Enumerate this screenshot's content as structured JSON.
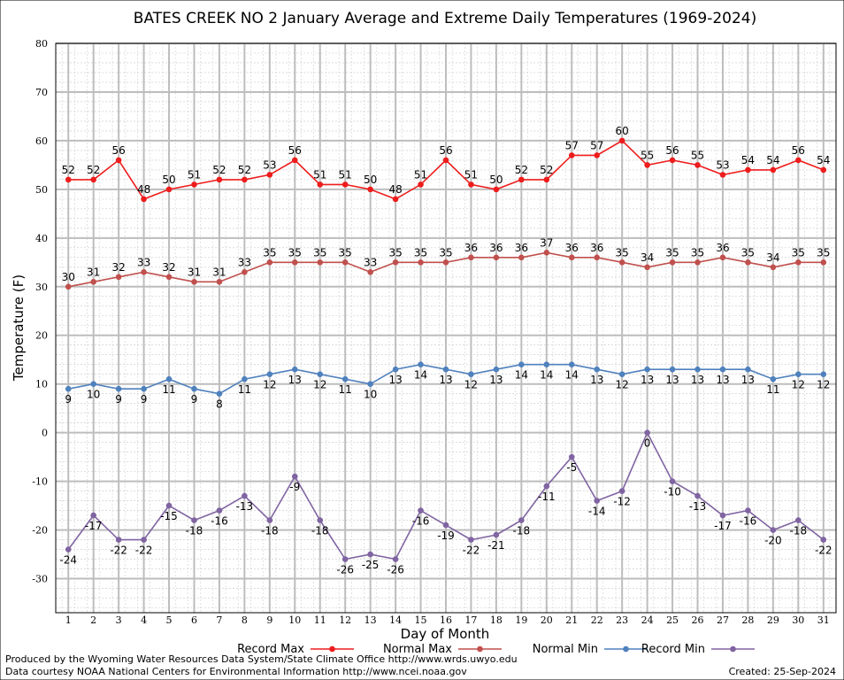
{
  "chart_data": {
    "type": "line",
    "title": "BATES CREEK NO 2 January Average and Extreme Daily Temperatures (1969-2024)",
    "xlabel": "Day of Month",
    "ylabel": "Temperature (F)",
    "ylim": [
      -37,
      80
    ],
    "y_ticks": [
      80,
      70,
      60,
      50,
      40,
      30,
      20,
      10,
      0,
      -10,
      -20,
      -30
    ],
    "x": [
      1,
      2,
      3,
      4,
      5,
      6,
      7,
      8,
      9,
      10,
      11,
      12,
      13,
      14,
      15,
      16,
      17,
      18,
      19,
      20,
      21,
      22,
      23,
      24,
      25,
      26,
      27,
      28,
      29,
      30,
      31
    ],
    "grid": true,
    "legend_position": "bottom",
    "series": [
      {
        "name": "Record Max",
        "color": "#ee1c1c",
        "label_position": "above",
        "values": [
          52,
          52,
          56,
          48,
          50,
          51,
          52,
          52,
          53,
          56,
          51,
          51,
          50,
          48,
          51,
          56,
          51,
          50,
          52,
          52,
          57,
          57,
          60,
          55,
          56,
          55,
          53,
          54,
          54,
          56,
          54
        ]
      },
      {
        "name": "Normal Max",
        "color": "#c0504d",
        "label_position": "above",
        "values": [
          30,
          31,
          32,
          33,
          32,
          31,
          31,
          33,
          35,
          35,
          35,
          35,
          33,
          35,
          35,
          35,
          36,
          36,
          36,
          37,
          36,
          36,
          35,
          34,
          35,
          35,
          36,
          35,
          34,
          35,
          35
        ]
      },
      {
        "name": "Normal Min",
        "color": "#4f81bd",
        "label_position": "below",
        "values": [
          9,
          10,
          9,
          9,
          11,
          9,
          8,
          11,
          12,
          13,
          12,
          11,
          10,
          13,
          14,
          13,
          12,
          13,
          14,
          14,
          14,
          13,
          12,
          13,
          13,
          13,
          13,
          13,
          11,
          12,
          12
        ]
      },
      {
        "name": "Record Min",
        "color": "#8064a2",
        "label_position": "below",
        "values": [
          -24,
          -17,
          -22,
          -22,
          -15,
          -18,
          -16,
          -13,
          -18,
          -9,
          -18,
          -26,
          -25,
          -26,
          -16,
          -19,
          -22,
          -21,
          -18,
          -11,
          -5,
          -14,
          -12,
          0,
          -10,
          -13,
          -17,
          -16,
          -20,
          -18,
          -22
        ]
      }
    ]
  },
  "footer": {
    "line1": "Produced by the Wyoming Water Resources Data System/State Climate Office http://www.wrds.uwyo.edu",
    "line2": "Data courtesy NOAA National Centers for Environmental Information http://www.ncei.noaa.gov",
    "created": "Created:  25-Sep-2024"
  }
}
